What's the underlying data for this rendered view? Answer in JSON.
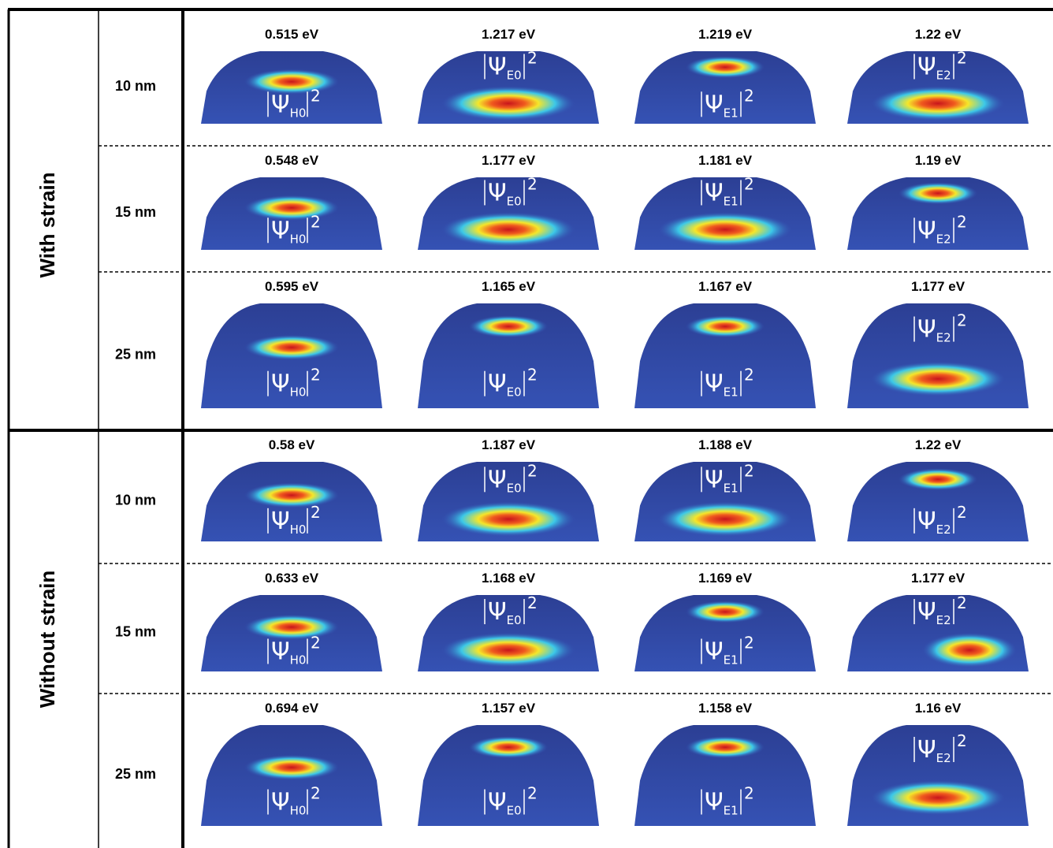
{
  "symbol": "Ψ",
  "exponent": "2",
  "sections": [
    {
      "label": "With strain",
      "rows": [
        {
          "size": "10 nm",
          "cells": [
            {
              "energy": "0.515 eV",
              "state": "H0"
            },
            {
              "energy": "1.217 eV",
              "state": "E0"
            },
            {
              "energy": "1.219 eV",
              "state": "E1"
            },
            {
              "energy": "1.22 eV",
              "state": "E2"
            }
          ]
        },
        {
          "size": "15 nm",
          "cells": [
            {
              "energy": "0.548 eV",
              "state": "H0"
            },
            {
              "energy": "1.177 eV",
              "state": "E0"
            },
            {
              "energy": "1.181 eV",
              "state": "E1"
            },
            {
              "energy": "1.19 eV",
              "state": "E2"
            }
          ]
        },
        {
          "size": "25 nm",
          "cells": [
            {
              "energy": "0.595 eV",
              "state": "H0"
            },
            {
              "energy": "1.165 eV",
              "state": "E0"
            },
            {
              "energy": "1.167 eV",
              "state": "E1"
            },
            {
              "energy": "1.177 eV",
              "state": "E2"
            }
          ]
        }
      ]
    },
    {
      "label": "Without strain",
      "rows": [
        {
          "size": "10 nm",
          "cells": [
            {
              "energy": "0.58 eV",
              "state": "H0"
            },
            {
              "energy": "1.187 eV",
              "state": "E0"
            },
            {
              "energy": "1.188 eV",
              "state": "E1"
            },
            {
              "energy": "1.22 eV",
              "state": "E2"
            }
          ]
        },
        {
          "size": "15 nm",
          "cells": [
            {
              "energy": "0.633 eV",
              "state": "H0"
            },
            {
              "energy": "1.168 eV",
              "state": "E0"
            },
            {
              "energy": "1.169 eV",
              "state": "E1"
            },
            {
              "energy": "1.177 eV",
              "state": "E2"
            }
          ]
        },
        {
          "size": "25 nm",
          "cells": [
            {
              "energy": "0.694 eV",
              "state": "H0"
            },
            {
              "energy": "1.157 eV",
              "state": "E0"
            },
            {
              "energy": "1.158 eV",
              "state": "E1"
            },
            {
              "energy": "1.16 eV",
              "state": "E2"
            }
          ]
        }
      ]
    }
  ]
}
